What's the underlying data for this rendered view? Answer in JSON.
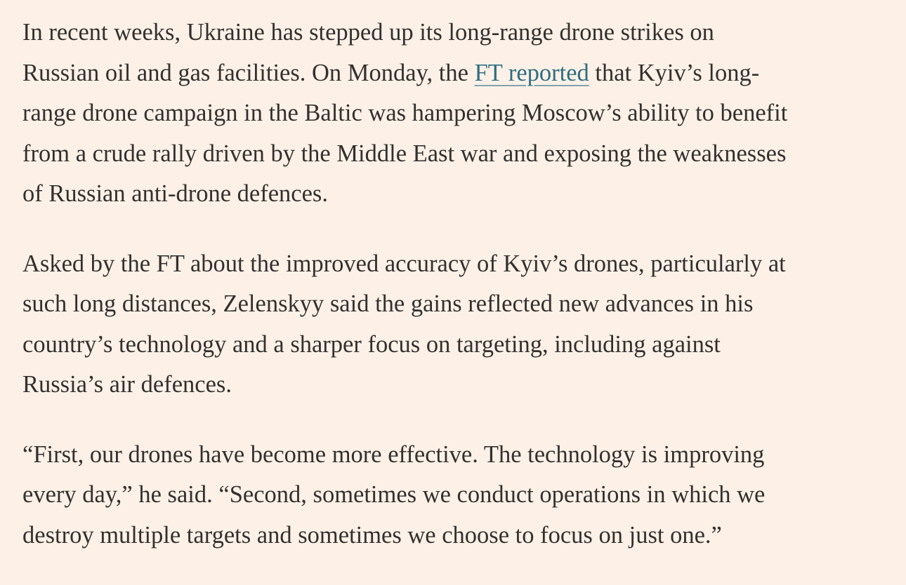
{
  "article": {
    "paragraphs": [
      {
        "lines": [
          {
            "text": "In recent weeks, Ukraine has stepped up its long-range drone strikes on"
          },
          {
            "before": "Russian oil and gas facilities. On Monday, the ",
            "link": "FT reported",
            "after": " that Kyiv’s long-"
          },
          {
            "text": "range drone campaign in the Baltic was hampering Moscow’s ability to benefit"
          },
          {
            "text": "from a crude rally driven by the Middle East war and exposing the weaknesses"
          },
          {
            "text": "of Russian anti-drone defences."
          }
        ]
      },
      {
        "lines": [
          {
            "text": "Asked by the FT about the improved accuracy of Kyiv’s drones, particularly at"
          },
          {
            "text": "such long distances, Zelenskyy said the gains reflected new advances in his"
          },
          {
            "text": "country’s technology and a sharper focus on targeting, including against"
          },
          {
            "text": "Russia’s air defences."
          }
        ]
      },
      {
        "lines": [
          {
            "text": "“First, our drones have become more effective. The technology is improving"
          },
          {
            "text": "every day,” he said. “Second, sometimes we conduct operations in which we"
          },
          {
            "text": "destroy multiple targets and sometimes we choose to focus on just one.”"
          }
        ]
      }
    ]
  },
  "colors": {
    "background": "#FDF1E7",
    "text": "#33302E",
    "link": "#2E6E80"
  }
}
